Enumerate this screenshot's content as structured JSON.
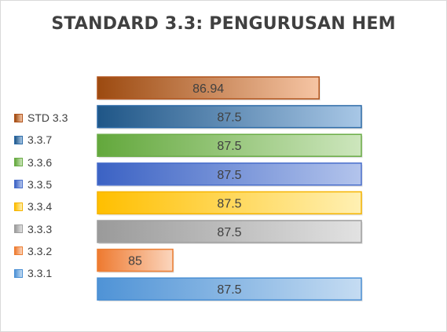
{
  "chart_data": {
    "type": "bar",
    "orientation": "horizontal",
    "title": "STANDARD 3.3: PENGURUSAN HEM",
    "xlabel": "",
    "ylabel": "",
    "xlim": [
      84,
      88.5
    ],
    "grid": false,
    "legend_position": "left",
    "data_labels": true,
    "categories": [
      "STD 3.3",
      "3.3.7",
      "3.3.6",
      "3.3.5",
      "3.3.4",
      "3.3.3",
      "3.3.2",
      "3.3.1"
    ],
    "values": [
      86.94,
      87.5,
      87.5,
      87.5,
      87.5,
      87.5,
      85,
      87.5
    ],
    "value_labels": [
      "86.94",
      "87.5",
      "87.5",
      "87.5",
      "87.5",
      "87.5",
      "85",
      "87.5"
    ],
    "colors": [
      {
        "dark": "#9c4a10",
        "light": "#f6c5a4",
        "border": "#b0521a"
      },
      {
        "dark": "#1f5687",
        "light": "#a8c7e6",
        "border": "#2e6ca8"
      },
      {
        "dark": "#63a83c",
        "light": "#cde6bd",
        "border": "#6aac46"
      },
      {
        "dark": "#3b62c4",
        "light": "#b3c4ec",
        "border": "#4a6fcc"
      },
      {
        "dark": "#ffbf00",
        "light": "#fff0b3",
        "border": "#f5b400"
      },
      {
        "dark": "#9a9a9a",
        "light": "#e2e2e2",
        "border": "#9e9e9e"
      },
      {
        "dark": "#ee7a30",
        "light": "#fbd6be",
        "border": "#ed7d31"
      },
      {
        "dark": "#4f93d6",
        "light": "#c5dcf2",
        "border": "#4a8fd4"
      }
    ]
  }
}
